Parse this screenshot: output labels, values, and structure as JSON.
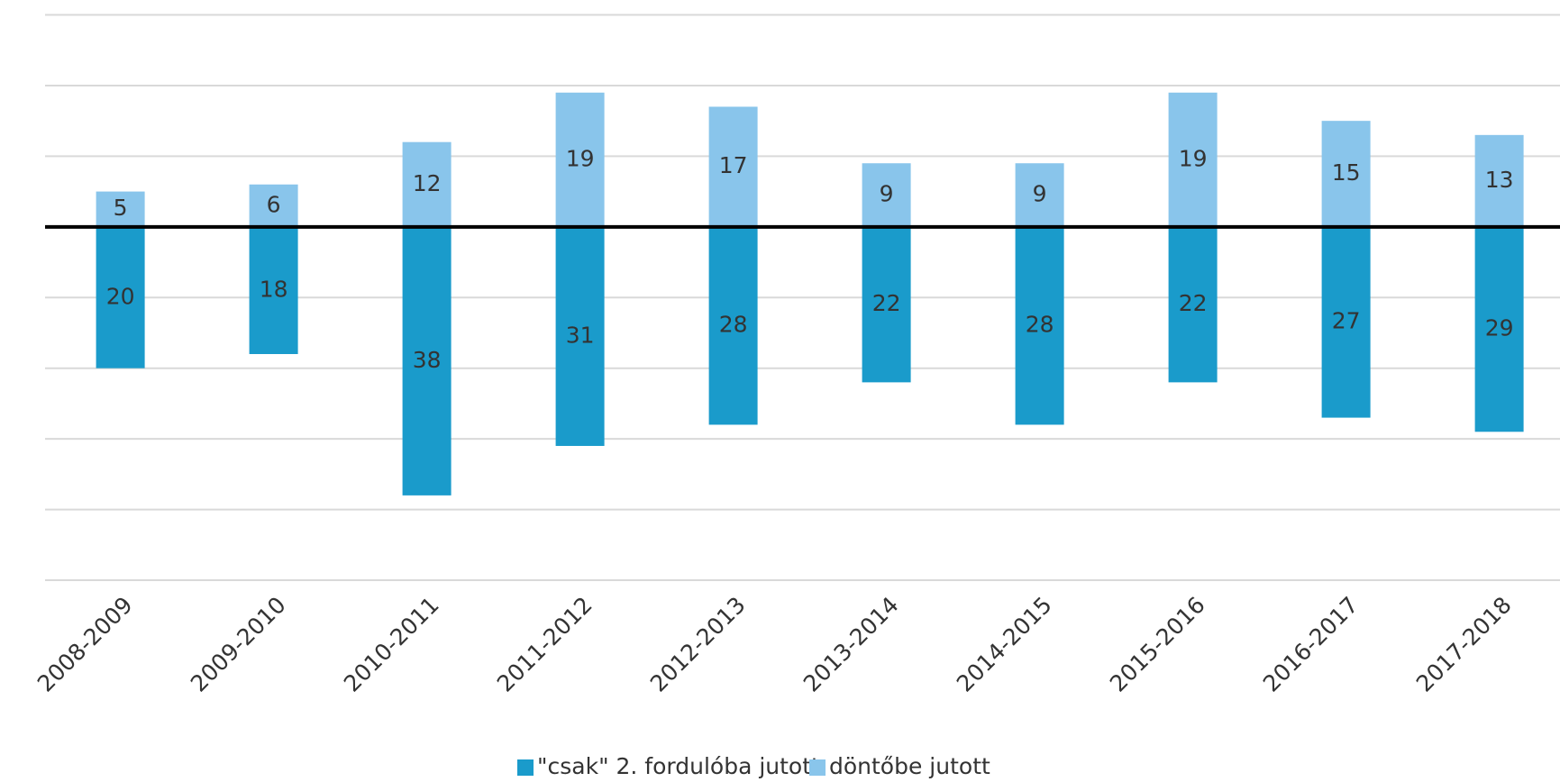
{
  "chart_data": {
    "type": "bar",
    "categories": [
      "2008-2009",
      "2009-2010",
      "2010-2011",
      "2011-2012",
      "2012-2013",
      "2013-2014",
      "2014-2015",
      "2015-2016",
      "2016-2017",
      "2017-2018"
    ],
    "series": [
      {
        "name": "\"csak\" 2. fordulóba jutott",
        "color": "#1a9bcb",
        "values": [
          -20,
          -18,
          -38,
          -31,
          -28,
          -22,
          -28,
          -22,
          -27,
          -29
        ],
        "value_labels": [
          "20",
          "18",
          "38",
          "31",
          "28",
          "22",
          "28",
          "22",
          "27",
          "29"
        ]
      },
      {
        "name": "döntőbe jutott",
        "color": "#89c5eb",
        "values": [
          5,
          6,
          12,
          19,
          17,
          9,
          9,
          19,
          15,
          13
        ]
      }
    ],
    "ylim": [
      -50,
      30
    ],
    "yticks": [
      -50,
      -40,
      -30,
      -20,
      -10,
      0,
      10,
      20,
      30
    ],
    "grid": true,
    "legend": "bottom"
  }
}
